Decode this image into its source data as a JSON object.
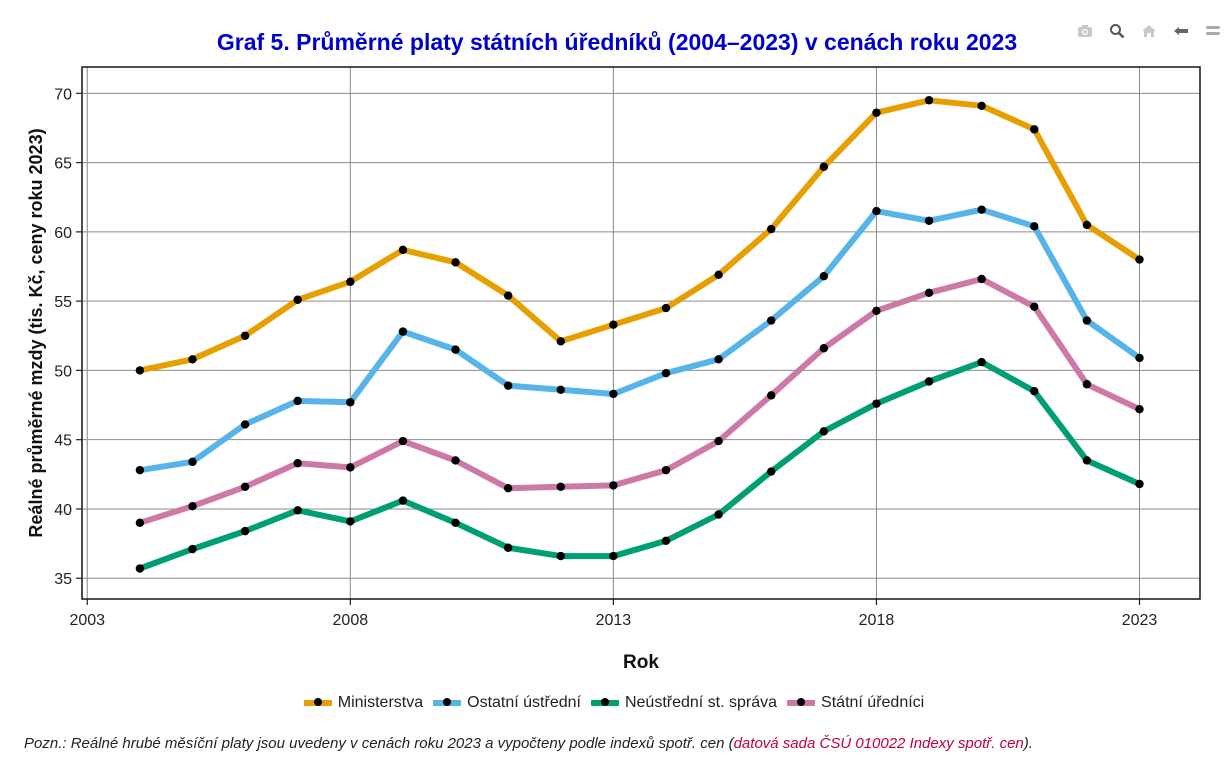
{
  "toolbar": {
    "icons": [
      "camera-icon",
      "zoom-icon",
      "home-icon",
      "pan-left-icon",
      "menu-icon"
    ]
  },
  "note": {
    "prefix": "Pozn.: Reálné hrubé měsíční platy jsou uvedeny v cenách roku 2023 a vypočteny podle indexů spotř. cen (",
    "link_text": "datová sada ČSÚ 010022 Indexy spotř. cen",
    "suffix": ")."
  },
  "chart_data": {
    "type": "line",
    "title": "Graf 5. Průměrné platy státních úředníků (2004–2023) v cenách roku 2023",
    "xlabel": "Rok",
    "ylabel": "Reálné průměrné mzdy (tis. Kč, ceny roku 2023)",
    "xlim": [
      2002.9,
      2024.15
    ],
    "ylim": [
      33.5,
      71.9
    ],
    "xticks": [
      2003,
      2008,
      2013,
      2018,
      2023
    ],
    "yticks": [
      35,
      40,
      45,
      50,
      55,
      60,
      65,
      70
    ],
    "grid": true,
    "legend_position": "bottom",
    "x": [
      2004,
      2005,
      2006,
      2007,
      2008,
      2009,
      2010,
      2011,
      2012,
      2013,
      2014,
      2015,
      2016,
      2017,
      2018,
      2019,
      2020,
      2021,
      2022,
      2023
    ],
    "series": [
      {
        "name": "Ministerstva",
        "color": "#E69F00",
        "values": [
          50.0,
          50.8,
          52.5,
          55.1,
          56.4,
          58.7,
          57.8,
          55.4,
          52.1,
          53.3,
          54.5,
          56.9,
          60.2,
          64.7,
          68.6,
          69.5,
          69.1,
          67.4,
          60.5,
          58.0
        ]
      },
      {
        "name": "Ostatní ústřední",
        "color": "#56B4E9",
        "values": [
          42.8,
          43.4,
          46.1,
          47.8,
          47.7,
          52.8,
          51.5,
          48.9,
          48.6,
          48.3,
          49.8,
          50.8,
          53.6,
          56.8,
          61.5,
          60.8,
          61.6,
          60.4,
          53.6,
          50.9
        ]
      },
      {
        "name": "Neústřední st. správa",
        "color": "#009E73",
        "values": [
          35.7,
          37.1,
          38.4,
          39.9,
          39.1,
          40.6,
          39.0,
          37.2,
          36.6,
          36.6,
          37.7,
          39.6,
          42.7,
          45.6,
          47.6,
          49.2,
          50.6,
          48.5,
          43.5,
          41.8
        ]
      },
      {
        "name": "Státní úředníci",
        "color": "#CC79A7",
        "values": [
          39.0,
          40.2,
          41.6,
          43.3,
          43.0,
          44.9,
          43.5,
          41.5,
          41.6,
          41.7,
          42.8,
          44.9,
          48.2,
          51.6,
          54.3,
          55.6,
          56.6,
          54.6,
          49.0,
          47.2
        ]
      }
    ]
  }
}
